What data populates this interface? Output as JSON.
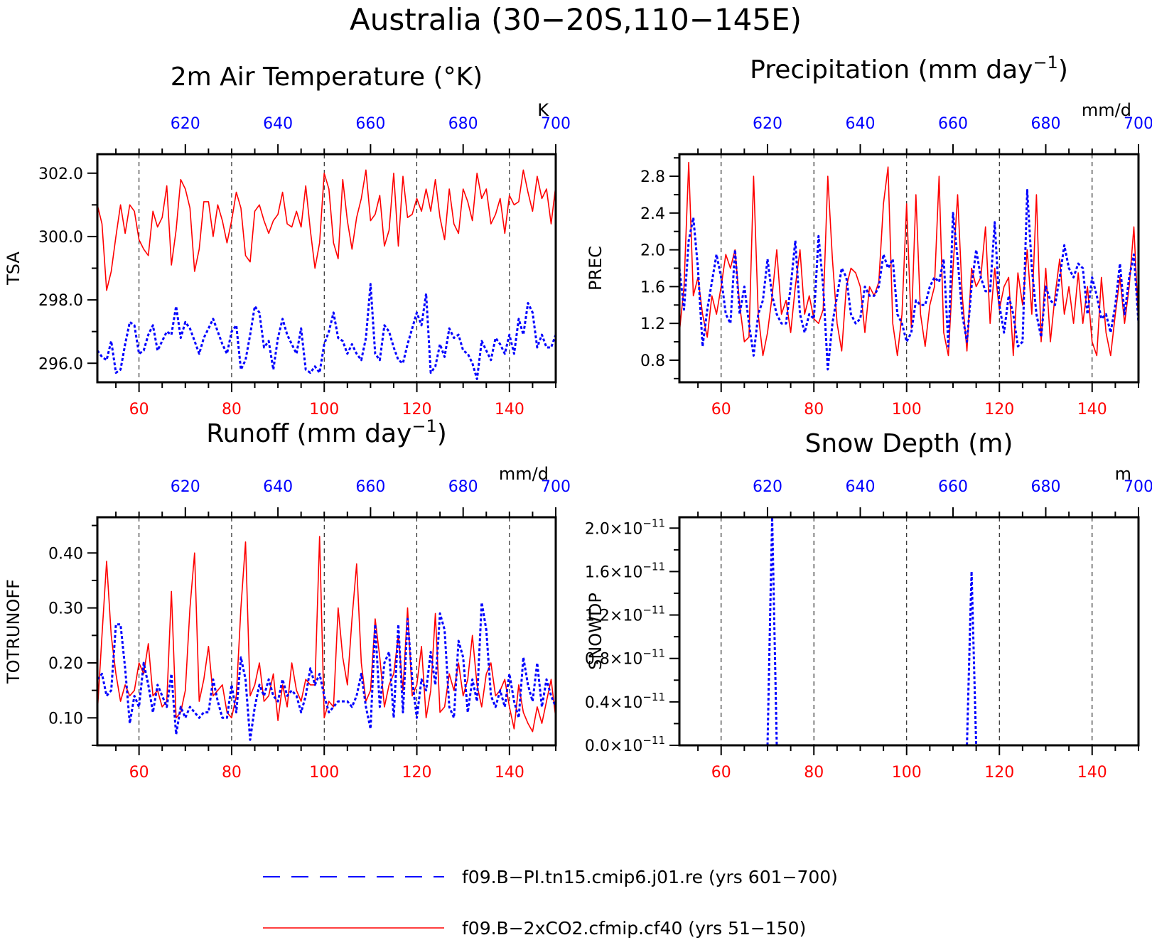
{
  "title": "Australia (30−20S,110−145E)",
  "colors": {
    "case1": "#ff0000",
    "case2": "#0000ff",
    "axis": "#000000",
    "grid": "#000000"
  },
  "legend": {
    "entries": [
      {
        "label": "f09.B−PI.tn15.cmip6.j01.re (yrs 601−700)",
        "color": "#0000ff",
        "style": "dashed"
      },
      {
        "label": "f09.B−2xCO2.cfmip.cf40 (yrs 51−150)",
        "color": "#ff0000",
        "style": "solid"
      }
    ]
  },
  "chart_data": [
    {
      "type": "line",
      "title": "2m Air Temperature (°K)",
      "ylabel": "TSA",
      "units": "K",
      "xlim_bottom": [
        51,
        150
      ],
      "xlim_top": [
        601,
        700
      ],
      "ylim": [
        295.4,
        302.6
      ],
      "yticks": [
        296.0,
        298.0,
        300.0,
        302.0
      ],
      "ytick_labels": [
        "296.0",
        "298.0",
        "300.0",
        "302.0"
      ],
      "xticks_bottom": [
        60,
        80,
        100,
        120,
        140
      ],
      "xticks_top": [
        620,
        640,
        660,
        680,
        700
      ],
      "grid": "dashed vertical",
      "series": [
        {
          "axis": "bottom",
          "color": "red",
          "style": "solid",
          "values": [
            301.0,
            300.4,
            298.3,
            298.9,
            300.0,
            301.0,
            300.1,
            301.0,
            300.8,
            299.9,
            299.6,
            299.4,
            300.8,
            300.3,
            300.6,
            301.6,
            299.1,
            300.2,
            301.8,
            301.5,
            300.9,
            298.9,
            299.6,
            301.1,
            301.1,
            300.0,
            301.0,
            300.5,
            299.8,
            300.5,
            301.4,
            300.9,
            299.4,
            299.2,
            300.8,
            301.0,
            300.5,
            300.1,
            300.5,
            300.7,
            301.4,
            300.4,
            300.3,
            300.8,
            300.3,
            301.6,
            300.2,
            299.0,
            299.8,
            302.0,
            301.5,
            299.8,
            299.3,
            301.8,
            300.5,
            299.6,
            300.6,
            301.2,
            302.1,
            300.5,
            300.7,
            301.3,
            299.7,
            300.2,
            302.0,
            299.7,
            301.9,
            300.6,
            300.7,
            301.2,
            300.8,
            301.5,
            300.8,
            301.8,
            300.6,
            299.9,
            301.5,
            300.4,
            300.1,
            301.5,
            301.1,
            300.5,
            302.0,
            301.2,
            301.5,
            300.4,
            300.7,
            301.2,
            300.1,
            301.3,
            301.0,
            301.1,
            302.1,
            301.4,
            300.8,
            301.9,
            301.2,
            301.5,
            300.4,
            301.6
          ]
        },
        {
          "axis": "top",
          "color": "blue",
          "style": "dashed",
          "values": [
            296.4,
            296.2,
            296.1,
            296.7,
            295.7,
            295.8,
            296.6,
            297.3,
            297.2,
            296.3,
            296.4,
            296.9,
            297.2,
            296.4,
            296.7,
            297.0,
            296.9,
            297.8,
            296.8,
            297.3,
            297.1,
            296.7,
            296.3,
            296.8,
            297.1,
            297.4,
            297.0,
            296.6,
            296.3,
            297.0,
            297.2,
            295.8,
            296.1,
            296.9,
            297.8,
            297.6,
            296.5,
            296.7,
            295.8,
            296.8,
            297.4,
            296.9,
            296.6,
            296.3,
            297.1,
            295.8,
            295.7,
            295.9,
            295.7,
            296.6,
            297.0,
            297.6,
            296.8,
            296.7,
            296.3,
            296.6,
            296.3,
            296.1,
            296.8,
            298.5,
            296.3,
            296.1,
            297.2,
            297.0,
            296.5,
            296.1,
            296.0,
            296.6,
            297.1,
            297.6,
            297.2,
            298.2,
            295.7,
            295.9,
            296.6,
            296.2,
            297.1,
            296.8,
            296.9,
            296.4,
            296.3,
            296.0,
            295.5,
            296.7,
            296.4,
            296.1,
            296.8,
            296.6,
            296.3,
            296.9,
            296.3,
            297.4,
            296.9,
            297.9,
            297.6,
            296.5,
            296.9,
            296.5,
            296.5,
            296.9
          ]
        }
      ]
    },
    {
      "type": "line",
      "title": "Precipitation (mm day⁻¹)",
      "title_main": "Precipitation (mm day",
      "title_sup": "−1",
      "ylabel": "PREC",
      "units": "mm/d",
      "xlim_bottom": [
        51,
        150
      ],
      "xlim_top": [
        601,
        700
      ],
      "ylim": [
        0.56,
        3.04
      ],
      "yticks": [
        0.8,
        1.2,
        1.6,
        2.0,
        2.4,
        2.8
      ],
      "ytick_labels": [
        "0.8",
        "1.2",
        "1.6",
        "2.0",
        "2.4",
        "2.8"
      ],
      "xticks_bottom": [
        60,
        80,
        100,
        120,
        140
      ],
      "xticks_top": [
        620,
        640,
        660,
        680,
        700
      ],
      "grid": "dashed vertical",
      "series": [
        {
          "axis": "bottom",
          "color": "red",
          "style": "solid",
          "values": [
            1.1,
            1.6,
            2.95,
            1.5,
            1.7,
            1.3,
            1.05,
            1.5,
            1.3,
            1.6,
            1.95,
            1.8,
            2.0,
            1.4,
            1.0,
            1.05,
            2.8,
            1.3,
            0.85,
            1.1,
            1.5,
            2.0,
            1.3,
            1.45,
            1.1,
            1.6,
            2.0,
            1.3,
            1.5,
            1.25,
            1.2,
            1.35,
            2.8,
            1.9,
            1.2,
            0.9,
            1.6,
            1.8,
            1.75,
            1.6,
            1.1,
            1.6,
            1.5,
            1.65,
            2.5,
            2.9,
            1.2,
            0.85,
            1.3,
            2.5,
            1.15,
            2.6,
            1.3,
            0.95,
            1.4,
            1.6,
            2.8,
            1.1,
            0.85,
            1.8,
            2.6,
            1.5,
            0.9,
            1.8,
            1.6,
            1.7,
            2.25,
            1.2,
            1.8,
            1.35,
            1.6,
            1.7,
            0.85,
            1.75,
            1.4,
            2.0,
            1.3,
            2.6,
            1.0,
            1.8,
            1.0,
            1.5,
            1.9,
            1.3,
            1.6,
            1.2,
            1.75,
            1.2,
            1.6,
            1.0,
            0.85,
            1.7,
            1.1,
            0.85,
            1.3,
            1.7,
            1.2,
            1.6,
            2.25,
            1.2
          ]
        },
        {
          "axis": "top",
          "color": "blue",
          "style": "dashed",
          "values": [
            1.8,
            1.35,
            2.1,
            2.35,
            1.8,
            0.95,
            1.35,
            1.65,
            1.95,
            1.7,
            1.3,
            1.2,
            2.0,
            1.3,
            1.6,
            1.2,
            0.85,
            1.3,
            1.45,
            1.9,
            1.5,
            1.3,
            1.2,
            1.2,
            1.6,
            2.1,
            1.3,
            1.1,
            1.3,
            1.25,
            2.15,
            1.6,
            0.7,
            1.2,
            1.5,
            1.8,
            1.7,
            1.3,
            1.2,
            1.25,
            1.6,
            1.5,
            1.5,
            1.6,
            1.95,
            1.8,
            1.9,
            1.3,
            1.2,
            1.0,
            1.1,
            1.45,
            1.4,
            1.4,
            1.6,
            1.7,
            1.65,
            1.9,
            0.95,
            2.4,
            1.9,
            1.3,
            1.0,
            1.6,
            2.0,
            1.7,
            1.55,
            1.55,
            2.3,
            1.4,
            1.1,
            1.5,
            1.3,
            0.95,
            1.0,
            2.65,
            1.8,
            1.3,
            1.05,
            1.6,
            1.45,
            1.4,
            1.7,
            2.05,
            1.8,
            1.7,
            1.85,
            1.8,
            1.3,
            1.7,
            1.5,
            1.25,
            1.3,
            1.1,
            1.4,
            1.85,
            1.3,
            1.7,
            1.95,
            1.2
          ]
        }
      ]
    },
    {
      "type": "line",
      "title": "Runoff (mm day⁻¹)",
      "title_main": "Runoff (mm day",
      "title_sup": "−1",
      "ylabel": "TOTRUNOFF",
      "units": "mm/d",
      "xlim_bottom": [
        51,
        150
      ],
      "xlim_top": [
        601,
        700
      ],
      "ylim": [
        0.05,
        0.465
      ],
      "yticks": [
        0.1,
        0.2,
        0.3,
        0.4
      ],
      "ytick_labels": [
        "0.10",
        "0.20",
        "0.30",
        "0.40"
      ],
      "xticks_bottom": [
        60,
        80,
        100,
        120,
        140
      ],
      "xticks_top": [
        620,
        640,
        660,
        680,
        700
      ],
      "grid": "dashed vertical",
      "series": [
        {
          "axis": "bottom",
          "color": "red",
          "style": "solid",
          "values": [
            0.11,
            0.25,
            0.385,
            0.25,
            0.18,
            0.13,
            0.16,
            0.14,
            0.15,
            0.2,
            0.18,
            0.235,
            0.14,
            0.15,
            0.12,
            0.13,
            0.33,
            0.1,
            0.11,
            0.15,
            0.3,
            0.4,
            0.13,
            0.17,
            0.23,
            0.14,
            0.15,
            0.16,
            0.11,
            0.1,
            0.14,
            0.3,
            0.42,
            0.14,
            0.16,
            0.2,
            0.13,
            0.14,
            0.18,
            0.095,
            0.16,
            0.12,
            0.2,
            0.15,
            0.13,
            0.17,
            0.16,
            0.16,
            0.43,
            0.1,
            0.13,
            0.12,
            0.3,
            0.21,
            0.16,
            0.28,
            0.38,
            0.2,
            0.13,
            0.15,
            0.28,
            0.21,
            0.12,
            0.16,
            0.18,
            0.25,
            0.15,
            0.3,
            0.14,
            0.16,
            0.23,
            0.1,
            0.15,
            0.29,
            0.11,
            0.12,
            0.18,
            0.15,
            0.2,
            0.14,
            0.17,
            0.25,
            0.16,
            0.12,
            0.18,
            0.2,
            0.14,
            0.15,
            0.17,
            0.12,
            0.08,
            0.16,
            0.11,
            0.09,
            0.075,
            0.12,
            0.09,
            0.13,
            0.17,
            0.1
          ]
        },
        {
          "axis": "top",
          "color": "blue",
          "style": "dashed",
          "values": [
            0.17,
            0.18,
            0.14,
            0.15,
            0.27,
            0.27,
            0.19,
            0.09,
            0.14,
            0.12,
            0.2,
            0.16,
            0.11,
            0.16,
            0.14,
            0.12,
            0.18,
            0.07,
            0.12,
            0.1,
            0.12,
            0.11,
            0.1,
            0.11,
            0.11,
            0.17,
            0.13,
            0.1,
            0.1,
            0.16,
            0.11,
            0.21,
            0.17,
            0.06,
            0.12,
            0.16,
            0.14,
            0.17,
            0.14,
            0.13,
            0.17,
            0.14,
            0.15,
            0.14,
            0.11,
            0.14,
            0.19,
            0.16,
            0.18,
            0.14,
            0.11,
            0.12,
            0.13,
            0.13,
            0.13,
            0.12,
            0.14,
            0.18,
            0.12,
            0.08,
            0.27,
            0.12,
            0.2,
            0.22,
            0.1,
            0.27,
            0.11,
            0.28,
            0.17,
            0.1,
            0.17,
            0.15,
            0.22,
            0.16,
            0.29,
            0.26,
            0.12,
            0.1,
            0.24,
            0.21,
            0.11,
            0.17,
            0.13,
            0.31,
            0.26,
            0.14,
            0.12,
            0.15,
            0.12,
            0.18,
            0.13,
            0.1,
            0.21,
            0.16,
            0.13,
            0.2,
            0.12,
            0.17,
            0.14,
            0.12
          ]
        }
      ]
    },
    {
      "type": "line",
      "title": "Snow Depth (m)",
      "ylabel": "SNOWDP",
      "units": "m",
      "xlim_bottom": [
        51,
        150
      ],
      "xlim_top": [
        601,
        700
      ],
      "ylim": [
        0.0,
        2.1e-11
      ],
      "yticks": [
        0.0,
        4e-12,
        8e-12,
        1.2e-11,
        1.6e-11,
        2e-11
      ],
      "ytick_labels": [
        "0.0",
        "0.4",
        "0.8",
        "1.2",
        "1.6",
        "2.0"
      ],
      "ytick_multiplier": "×10",
      "ytick_exponent": "−11",
      "xticks_bottom": [
        60,
        80,
        100,
        120,
        140
      ],
      "xticks_top": [
        620,
        640,
        660,
        680,
        700
      ],
      "grid": "dashed vertical",
      "series": [
        {
          "axis": "top",
          "color": "blue",
          "style": "dashed",
          "x": [
            620,
            621,
            622,
            663,
            664,
            665
          ],
          "values": [
            0.0,
            2.2e-11,
            0.0,
            0.0,
            1.6e-11,
            0.0
          ]
        }
      ]
    }
  ]
}
